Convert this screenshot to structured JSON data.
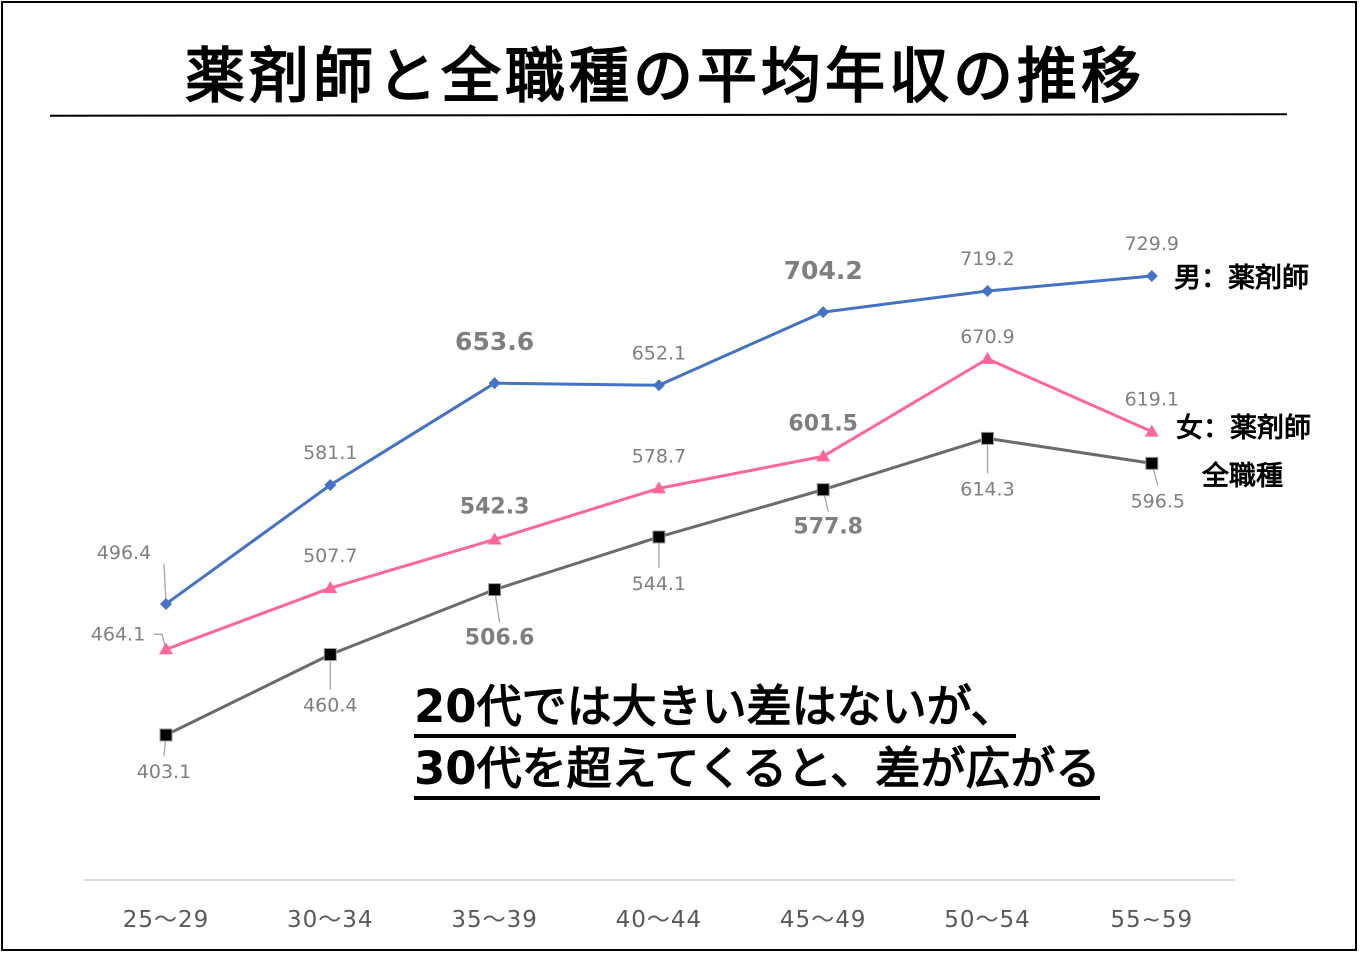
{
  "title": "薬剤師と全職種の平均年収の推移",
  "annotation": {
    "line1": "20代では大きい差はないが、",
    "line2": "30代を超えてくると、差が広がる"
  },
  "chart_data": {
    "type": "line",
    "title": "薬剤師と全職種の平均年収の推移",
    "xlabel": "",
    "ylabel": "",
    "categories": [
      "25～29",
      "30～34",
      "35～39",
      "40～44",
      "45～49",
      "50～54",
      "55~59"
    ],
    "ylim": [
      403.1,
      729.9
    ],
    "grid": false,
    "legend": "inline-right",
    "series": [
      {
        "name": "男：薬剤師",
        "color": "#4472c4",
        "marker": "diamond",
        "values": [
          496.4,
          581.1,
          653.6,
          652.1,
          704.2,
          719.2,
          729.9
        ],
        "labels": [
          "496.4",
          "581.1",
          "653.6",
          "652.1",
          "704.2",
          "719.2",
          "729.9"
        ],
        "emphasized": [
          false,
          false,
          true,
          false,
          true,
          false,
          false
        ]
      },
      {
        "name": "女：薬剤師",
        "color": "#ff6699",
        "marker": "triangle",
        "values": [
          464.1,
          507.7,
          542.3,
          578.7,
          601.5,
          670.9,
          619.1
        ],
        "labels": [
          "464.1",
          "507.7",
          "542.3",
          "578.7",
          "601.5",
          "670.9",
          "619.1"
        ],
        "emphasized": [
          false,
          false,
          true,
          false,
          true,
          false,
          false
        ]
      },
      {
        "name": "全職種",
        "color": "#6b6b6b",
        "marker": "square",
        "values": [
          403.1,
          460.4,
          506.6,
          544.1,
          577.8,
          614.3,
          596.5
        ],
        "labels": [
          "403.1",
          "460.4",
          "506.6",
          "544.1",
          "577.8",
          "614.3",
          "596.5"
        ],
        "emphasized": [
          false,
          false,
          true,
          false,
          true,
          false,
          false
        ]
      }
    ]
  }
}
